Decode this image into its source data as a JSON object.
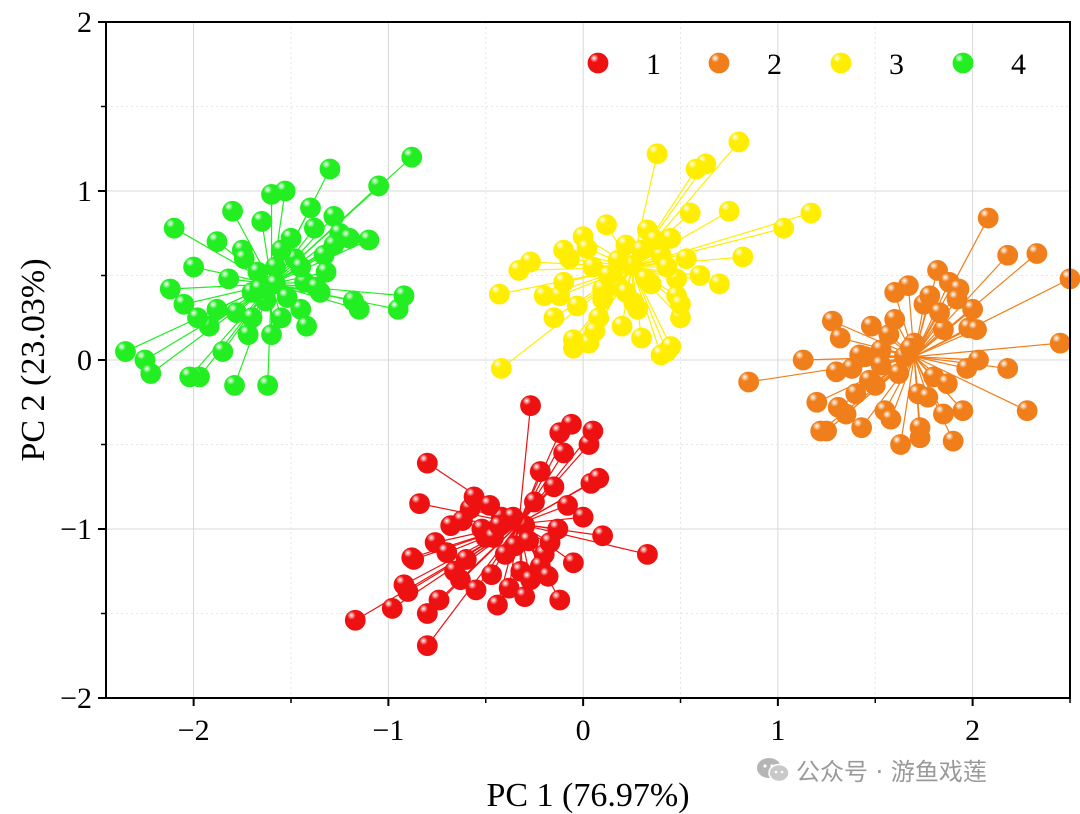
{
  "chart_data": {
    "type": "scatter",
    "title": "",
    "xlabel": "PC 1 (76.97%)",
    "ylabel": "PC 2 (23.03%)",
    "xlim": [
      -2.45,
      2.5
    ],
    "ylim": [
      -2,
      2
    ],
    "xticks": [
      -2,
      -1,
      0,
      1,
      2
    ],
    "yticks": [
      -2,
      -1,
      0,
      1,
      2
    ],
    "xtick_labels": [
      "−2",
      "−1",
      "0",
      "1",
      "2"
    ],
    "ytick_labels": [
      "−2",
      "−1",
      "0",
      "1",
      "2"
    ],
    "grid": true,
    "legend_position": "top-right",
    "style": "ball markers, each point connected by a line to its group centroid",
    "series": [
      {
        "name": "1",
        "color": "#ee1111",
        "centroid": [
          -0.33,
          -0.97
        ],
        "x": [
          -1.17,
          -0.98,
          -0.9,
          -0.92,
          -0.87,
          -0.8,
          -0.8,
          -0.76,
          -0.68,
          -0.63,
          -0.6,
          -0.58,
          -0.55,
          -0.5,
          -0.47,
          -0.44,
          -0.42,
          -0.38,
          -0.35,
          -0.32,
          -0.3,
          -0.27,
          -0.25,
          -0.22,
          -0.2,
          -0.17,
          -0.15,
          -0.12,
          -0.1,
          -0.05,
          0.0,
          0.03,
          0.05,
          0.1,
          0.33,
          -0.27,
          -0.12,
          -0.06,
          0.04,
          -0.8,
          -0.84,
          -0.66,
          -0.62,
          -0.52,
          -0.46,
          -0.4,
          -0.3,
          -0.22,
          -0.13,
          -0.08,
          0.08,
          -0.7,
          -0.56,
          -0.43,
          -0.36,
          -0.28,
          -0.18,
          -0.88,
          -0.74,
          -0.48
        ],
        "y": [
          -1.54,
          -1.47,
          -1.37,
          -1.33,
          -1.18,
          -1.5,
          -1.69,
          -1.08,
          -0.98,
          -1.3,
          -1.18,
          -0.88,
          -1.36,
          -1.05,
          -1.27,
          -1.45,
          -0.93,
          -1.35,
          -1.1,
          -1.25,
          -0.98,
          -1.3,
          -0.84,
          -0.66,
          -1.15,
          -1.08,
          -0.75,
          -1.42,
          -0.55,
          -1.2,
          -0.93,
          -0.5,
          -0.42,
          -1.04,
          -1.15,
          -0.27,
          -0.43,
          -0.38,
          -0.73,
          -0.61,
          -0.85,
          -1.25,
          -0.95,
          -1.0,
          -1.05,
          -1.15,
          -1.4,
          -1.22,
          -1.0,
          -0.86,
          -0.7,
          -1.14,
          -0.81,
          -0.98,
          -0.93,
          -1.07,
          -1.28,
          -1.17,
          -1.42,
          -0.86
        ]
      },
      {
        "name": "2",
        "color": "#f07e1a",
        "centroid": [
          1.7,
          0.02
        ],
        "x": [
          0.85,
          1.13,
          1.2,
          1.25,
          1.28,
          1.3,
          1.32,
          1.35,
          1.38,
          1.4,
          1.43,
          1.45,
          1.48,
          1.5,
          1.53,
          1.55,
          1.57,
          1.6,
          1.62,
          1.65,
          1.67,
          1.7,
          1.72,
          1.75,
          1.78,
          1.8,
          1.82,
          1.85,
          1.88,
          1.9,
          1.93,
          1.95,
          1.98,
          2.0,
          2.03,
          2.08,
          2.18,
          2.28,
          2.33,
          2.45,
          2.5,
          2.18,
          1.22,
          1.31,
          1.47,
          1.58,
          1.63,
          1.68,
          1.73,
          1.77,
          1.83,
          1.87,
          1.92,
          1.97,
          2.02,
          1.6,
          1.73,
          1.85,
          1.42,
          1.53
        ],
        "y": [
          -0.13,
          0.0,
          -0.25,
          -0.42,
          0.23,
          -0.07,
          0.13,
          -0.32,
          -0.05,
          -0.2,
          -0.4,
          0.02,
          0.2,
          -0.15,
          0.06,
          -0.3,
          0.15,
          0.24,
          -0.08,
          0.02,
          0.44,
          0.1,
          -0.2,
          0.33,
          0.38,
          -0.1,
          0.53,
          0.18,
          0.46,
          -0.48,
          0.42,
          -0.3,
          0.19,
          0.3,
          0.0,
          0.84,
          0.62,
          -0.3,
          0.63,
          0.1,
          0.48,
          -0.05,
          -0.42,
          -0.28,
          -0.12,
          -0.35,
          -0.5,
          0.07,
          -0.46,
          -0.22,
          0.28,
          -0.14,
          0.36,
          -0.05,
          0.18,
          0.4,
          -0.4,
          -0.32,
          0.03,
          -0.03
        ]
      },
      {
        "name": "3",
        "color": "#ffee00",
        "centroid": [
          0.25,
          0.55
        ],
        "x": [
          -0.42,
          -0.43,
          -0.33,
          -0.27,
          -0.2,
          -0.15,
          -0.12,
          -0.1,
          -0.07,
          -0.05,
          -0.03,
          0.0,
          0.03,
          0.05,
          0.08,
          0.1,
          0.12,
          0.15,
          0.18,
          0.2,
          0.22,
          0.25,
          0.28,
          0.3,
          0.33,
          0.35,
          0.38,
          0.4,
          0.43,
          0.45,
          0.48,
          0.5,
          0.53,
          0.55,
          0.6,
          0.63,
          0.7,
          0.75,
          0.8,
          1.03,
          1.17,
          0.82,
          0.58,
          0.4,
          -0.05,
          0.02,
          0.1,
          0.18,
          0.26,
          0.32,
          0.37,
          0.43,
          0.48,
          -0.1,
          0.06,
          0.13,
          0.22,
          0.3,
          0.45,
          0.5
        ],
        "y": [
          -0.05,
          0.39,
          0.53,
          0.58,
          0.38,
          0.25,
          0.38,
          0.46,
          0.6,
          0.07,
          0.32,
          0.73,
          0.1,
          0.55,
          0.25,
          0.36,
          0.8,
          0.5,
          0.44,
          0.2,
          0.68,
          0.56,
          0.3,
          0.13,
          0.77,
          0.45,
          1.22,
          0.62,
          0.05,
          0.72,
          0.48,
          0.25,
          0.6,
          0.87,
          0.5,
          1.16,
          0.45,
          0.88,
          1.29,
          0.78,
          0.87,
          0.61,
          1.13,
          0.03,
          0.12,
          0.66,
          0.42,
          0.59,
          0.34,
          0.48,
          0.71,
          0.55,
          0.38,
          0.65,
          0.17,
          0.5,
          0.4,
          0.65,
          0.08,
          0.33
        ]
      },
      {
        "name": "4",
        "color": "#22ee22",
        "centroid": [
          -1.6,
          0.45
        ],
        "x": [
          -2.35,
          -2.25,
          -2.22,
          -2.12,
          -2.1,
          -2.05,
          -2.0,
          -1.97,
          -1.92,
          -1.88,
          -1.85,
          -1.82,
          -1.8,
          -1.78,
          -1.75,
          -1.72,
          -1.7,
          -1.67,
          -1.65,
          -1.63,
          -1.6,
          -1.58,
          -1.55,
          -1.53,
          -1.5,
          -1.48,
          -1.45,
          -1.43,
          -1.4,
          -1.38,
          -1.35,
          -1.33,
          -1.3,
          -1.28,
          -1.25,
          -1.2,
          -1.15,
          -1.1,
          -1.05,
          -0.95,
          -0.92,
          -0.88,
          -1.62,
          -1.79,
          -1.7,
          -1.58,
          -1.52,
          -1.45,
          -1.42,
          -1.37,
          -1.32,
          -1.28,
          -1.18,
          -1.88,
          -1.74,
          -1.66,
          -1.6,
          -1.55,
          -1.98,
          -2.02
        ],
        "y": [
          0.05,
          0.0,
          -0.08,
          0.42,
          0.78,
          0.33,
          0.55,
          -0.1,
          0.2,
          0.7,
          0.05,
          0.48,
          0.88,
          0.28,
          0.65,
          0.15,
          0.4,
          0.52,
          0.82,
          0.35,
          0.98,
          0.55,
          0.25,
          1.0,
          0.72,
          0.6,
          0.3,
          0.46,
          0.9,
          0.78,
          0.4,
          0.62,
          1.13,
          0.85,
          0.75,
          0.72,
          0.3,
          0.71,
          1.03,
          0.3,
          0.38,
          1.2,
          -0.15,
          -0.15,
          0.25,
          0.45,
          0.37,
          0.55,
          0.2,
          0.43,
          0.52,
          0.68,
          0.35,
          0.3,
          0.6,
          0.42,
          0.15,
          0.65,
          0.25,
          -0.1
        ]
      }
    ]
  },
  "watermark": {
    "text": "公众号 · 游鱼戏莲",
    "icon": "wechat-icon"
  }
}
